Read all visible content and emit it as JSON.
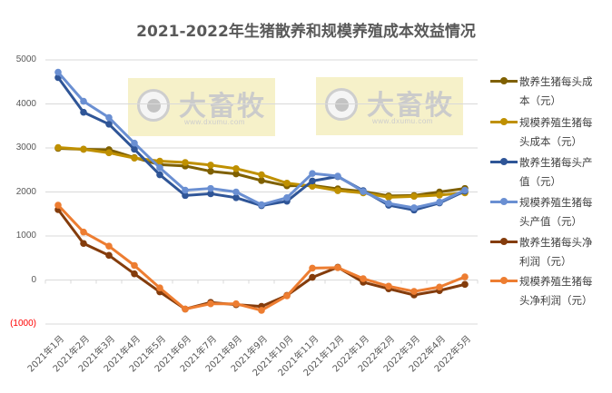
{
  "chart_data": {
    "type": "line",
    "title": "2021-2022年生猪散养和规模养殖成本效益情况",
    "xlabel": "",
    "ylabel": "",
    "ylim": [
      -1000,
      5000
    ],
    "yticks": [
      "5000",
      "4000",
      "3000",
      "2000",
      "1000",
      "0",
      "(1000)"
    ],
    "grid": true,
    "legend_position": "right",
    "categories": [
      "2021年1月",
      "2021年2月",
      "2021年3月",
      "2021年4月",
      "2021年5月",
      "2021年6月",
      "2021年7月",
      "2021年8月",
      "2021年9月",
      "2021年10月",
      "2021年11月",
      "2021年12月",
      "2022年1月",
      "2022年2月",
      "2022年3月",
      "2022年4月",
      "2022年5月"
    ],
    "series": [
      {
        "name": "散养生猪每头成本（元）",
        "color": "#7f6000",
        "values": [
          2990,
          2970,
          2960,
          2780,
          2620,
          2590,
          2470,
          2410,
          2260,
          2140,
          2150,
          2070,
          2010,
          1910,
          1920,
          2000,
          2080
        ]
      },
      {
        "name": "规模养殖生猪每头成本（元）",
        "color": "#bf9000",
        "values": [
          3010,
          2970,
          2890,
          2770,
          2700,
          2670,
          2610,
          2530,
          2390,
          2200,
          2130,
          2030,
          1980,
          1880,
          1900,
          1930,
          1980
        ]
      },
      {
        "name": "散养生猪每头产值（元）",
        "color": "#2f5597",
        "values": [
          4600,
          3810,
          3540,
          2970,
          2390,
          1920,
          1960,
          1870,
          1690,
          1790,
          2250,
          2350,
          2030,
          1700,
          1590,
          1750,
          2020
        ]
      },
      {
        "name": "规模养殖生猪每头产值（元）",
        "color": "#6a8fd2",
        "values": [
          4720,
          4060,
          3690,
          3110,
          2550,
          2040,
          2080,
          2000,
          1710,
          1870,
          2420,
          2360,
          2010,
          1740,
          1640,
          1770,
          2040
        ]
      },
      {
        "name": "散养生猪每头净利润（元）",
        "color": "#843c0c",
        "values": [
          1600,
          830,
          560,
          140,
          -270,
          -660,
          -510,
          -560,
          -600,
          -350,
          60,
          290,
          -50,
          -200,
          -340,
          -240,
          -100
        ]
      },
      {
        "name": "规模养殖生猪每头净利润（元）",
        "color": "#ed7d31",
        "values": [
          1700,
          1090,
          770,
          330,
          -180,
          -660,
          -540,
          -540,
          -690,
          -360,
          270,
          280,
          30,
          -140,
          -260,
          -160,
          70
        ]
      }
    ]
  },
  "watermark": {
    "brand": "大畜牧",
    "url": "www.dxumu.com"
  },
  "legend": {
    "items": [
      {
        "line1": "散养生猪每头成",
        "line2": "本（元）"
      },
      {
        "line1": "规模养殖生猪每",
        "line2": "头成本（元）"
      },
      {
        "line1": "散养生猪每头产",
        "line2": "值（元）"
      },
      {
        "line1": "规模养殖生猪每",
        "line2": "头产值（元）"
      },
      {
        "line1": "散养生猪每头净",
        "line2": "利润（元）"
      },
      {
        "line1": "规模养殖生猪每",
        "line2": "头净利润（元）"
      }
    ]
  }
}
